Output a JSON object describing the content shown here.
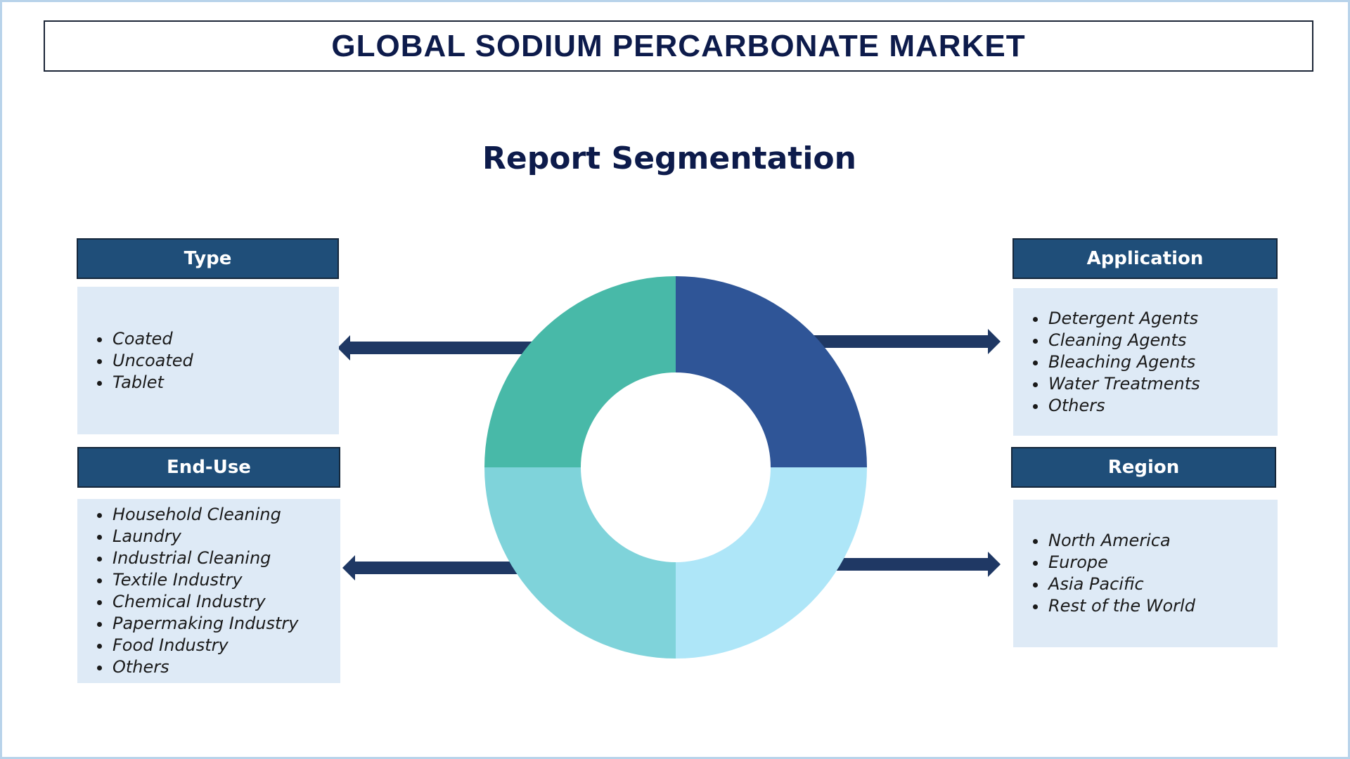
{
  "title": "GLOBAL SODIUM PERCARBONATE MARKET",
  "subtitle": "Report Segmentation",
  "segments": {
    "type": {
      "label": "Type",
      "items": [
        "Coated",
        "Uncoated",
        "Tablet"
      ]
    },
    "end_use": {
      "label": "End-Use",
      "items": [
        "Household Cleaning",
        "Laundry",
        "Industrial Cleaning",
        "Textile Industry",
        "Chemical Industry",
        "Papermaking Industry",
        "Food Industry",
        "Others"
      ]
    },
    "application": {
      "label": "Application",
      "items": [
        "Detergent Agents",
        "Cleaning Agents",
        "Bleaching Agents",
        "Water Treatments",
        "Others"
      ]
    },
    "region": {
      "label": "Region",
      "items": [
        "North America",
        "Europe",
        "Asia Pacific",
        "Rest of the World"
      ]
    }
  },
  "colors": {
    "header": "#1f4e79",
    "body": "#deeaf6",
    "arrow": "#1f3864",
    "donut": [
      "#2f5597",
      "#aee6f8",
      "#7fd3da",
      "#48b9a8"
    ]
  }
}
